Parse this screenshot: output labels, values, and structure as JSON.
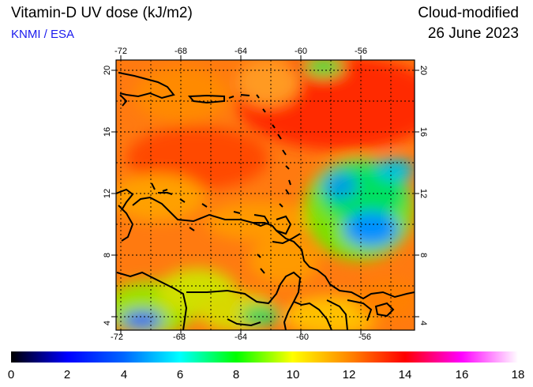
{
  "header": {
    "title": "Vitamin-D UV dose (kJ/m2)",
    "source": "KNMI / ESA",
    "product": "Cloud-modified",
    "date": "26 June 2023"
  },
  "map": {
    "lon_range": [
      -73,
      -53.5
    ],
    "lat_range": [
      3.3,
      20.8
    ],
    "lon_ticks": [
      -72,
      -68,
      -64,
      -60,
      -56
    ],
    "lat_ticks": [
      4,
      8,
      12,
      16,
      20
    ],
    "gridlines": "dotted",
    "coastline_color": "#000000"
  },
  "colorbar": {
    "ticks": [
      0,
      2,
      4,
      6,
      8,
      10,
      12,
      14,
      16,
      18
    ],
    "stops": [
      "#000000",
      "#0000ff",
      "#00ffff",
      "#00ff00",
      "#ffff00",
      "#ff0000",
      "#ff00ff",
      "#ffffff"
    ]
  }
}
